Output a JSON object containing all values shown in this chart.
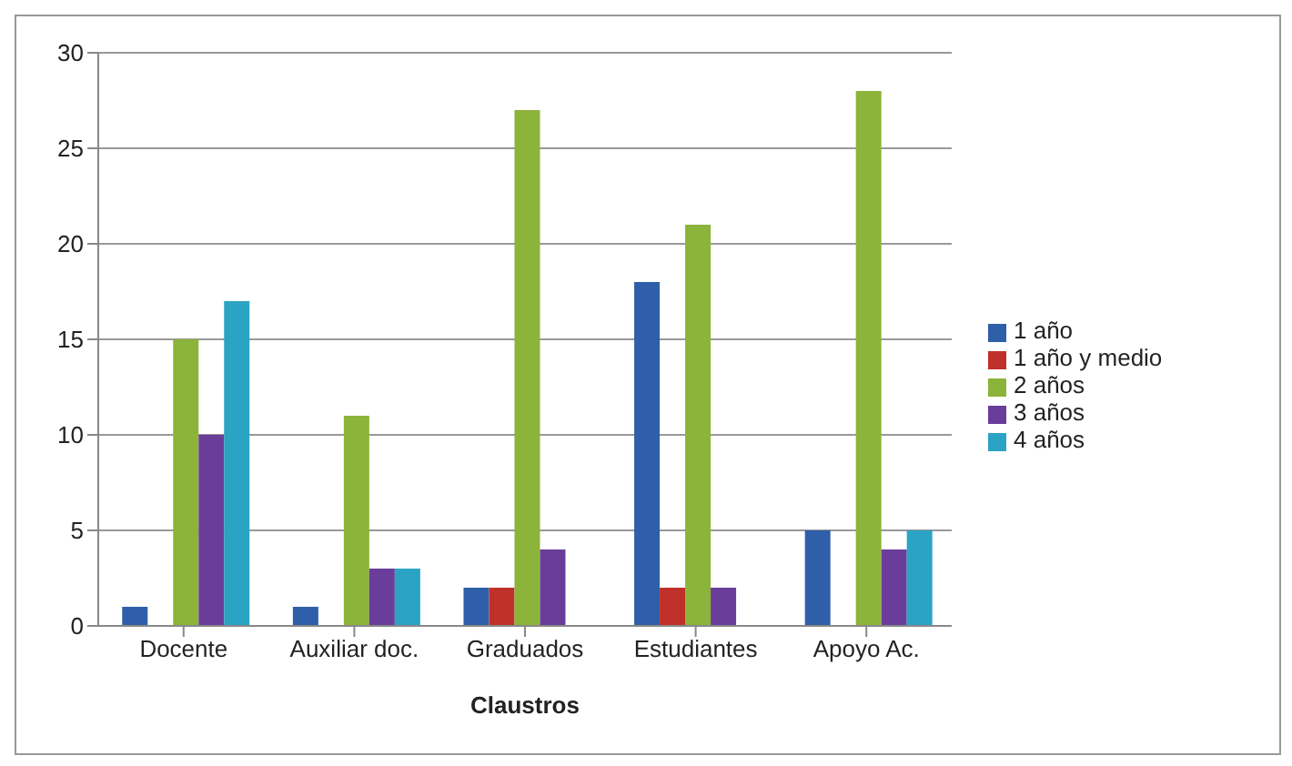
{
  "chart_data": {
    "type": "bar",
    "xlabel": "Claustros",
    "categories": [
      "Docente",
      "Auxiliar doc.",
      "Graduados",
      "Estudiantes",
      "Apoyo Ac."
    ],
    "series": [
      {
        "name": "1 año",
        "color": "#2f5fa8",
        "values": [
          1,
          1,
          2,
          18,
          5
        ]
      },
      {
        "name": "1 año y medio",
        "color": "#c0302b",
        "values": [
          null,
          null,
          2,
          2,
          null
        ]
      },
      {
        "name": "2 años",
        "color": "#8cb33a",
        "values": [
          15,
          11,
          27,
          21,
          28
        ]
      },
      {
        "name": "3 años",
        "color": "#6a3d9a",
        "values": [
          10,
          3,
          4,
          2,
          4
        ]
      },
      {
        "name": "4 años",
        "color": "#2ba3c4",
        "values": [
          17,
          3,
          null,
          null,
          5
        ]
      }
    ],
    "ylim": [
      0,
      30
    ],
    "yticks": [
      0,
      5,
      10,
      15,
      20,
      25,
      30
    ],
    "grid": "y",
    "legend": "right"
  }
}
